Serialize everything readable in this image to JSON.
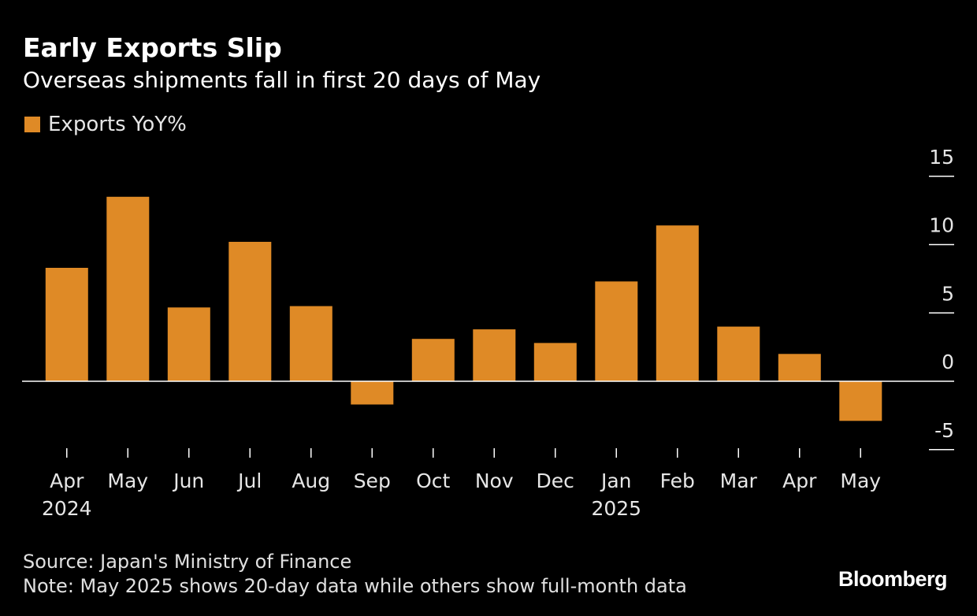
{
  "header": {
    "title": "Early Exports Slip",
    "subtitle": "Overseas shipments fall in first 20 days of May"
  },
  "legend": {
    "label": "Exports YoY%"
  },
  "colors": {
    "bar": "#df8a26",
    "background": "#000000",
    "zero_line": "#ffffff",
    "tick": "#ffffff"
  },
  "chart_data": {
    "type": "bar",
    "categories": [
      "Apr",
      "May",
      "Jun",
      "Jul",
      "Aug",
      "Sep",
      "Oct",
      "Nov",
      "Dec",
      "Jan",
      "Feb",
      "Mar",
      "Apr",
      "May"
    ],
    "year_labels": [
      {
        "index": 0,
        "label": "2024"
      },
      {
        "index": 9,
        "label": "2025"
      }
    ],
    "series": [
      {
        "name": "Exports YoY%",
        "values": [
          8.3,
          13.5,
          5.4,
          10.2,
          5.5,
          -1.7,
          3.1,
          3.8,
          2.8,
          7.3,
          11.4,
          4.0,
          2.0,
          -2.9
        ]
      }
    ],
    "ylim": [
      -5,
      15
    ],
    "yticks": [
      15,
      10,
      5,
      0,
      -5
    ],
    "ytick_labels": [
      "15",
      "10",
      "5",
      "0",
      "-5"
    ],
    "grid": false,
    "legend_position": "top-left",
    "xlabel": "",
    "ylabel": ""
  },
  "footer": {
    "source": "Source: Japan's Ministry of Finance",
    "note": "Note: May 2025 shows 20-day data while others show full-month data",
    "brand": "Bloomberg"
  }
}
